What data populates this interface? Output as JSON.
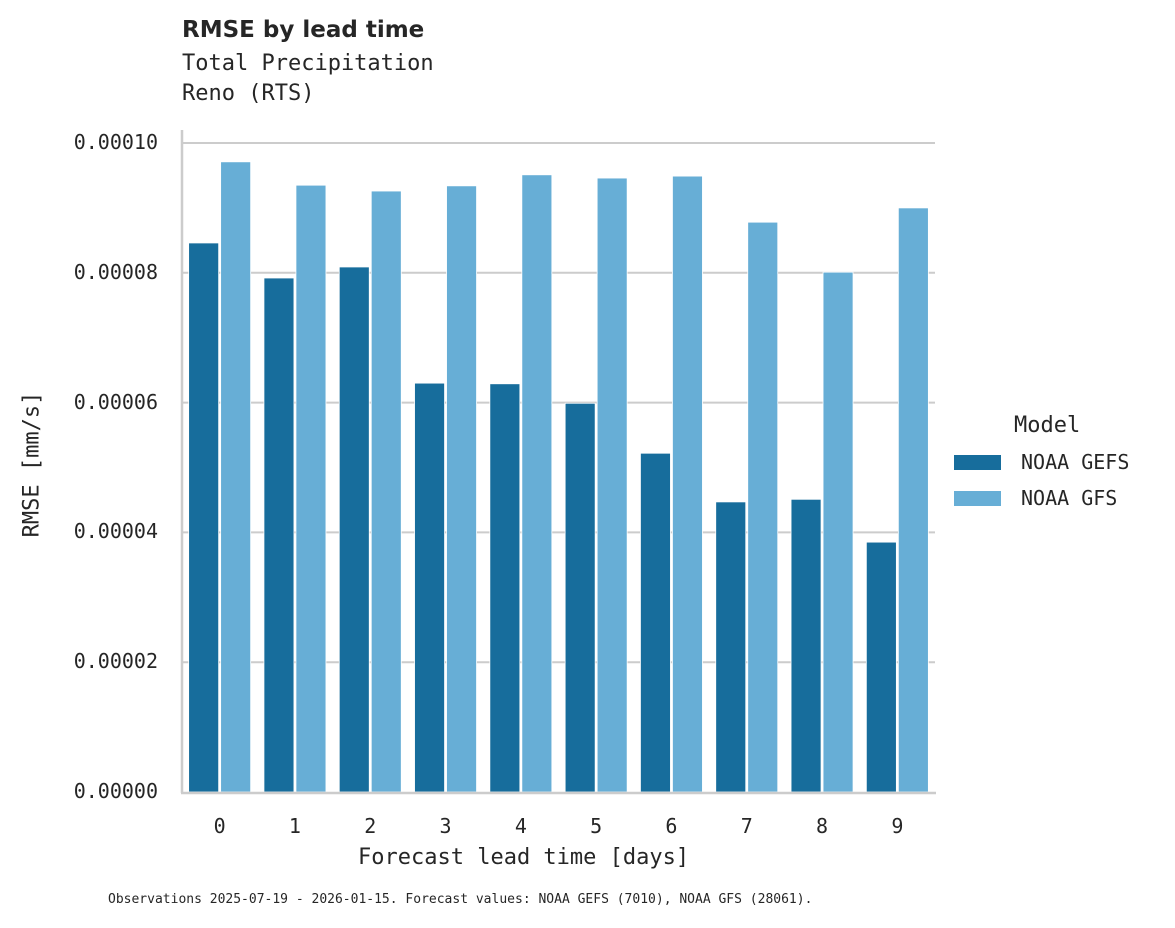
{
  "header": {
    "title": "RMSE by lead time",
    "subtitle_line1": "Total Precipitation",
    "subtitle_line2": "Reno (RTS)"
  },
  "axes": {
    "xlabel": "Forecast lead time [days]",
    "ylabel": "RMSE [mm/s]",
    "yticks": [
      "0.00000",
      "0.00002",
      "0.00004",
      "0.00006",
      "0.00008",
      "0.00010"
    ],
    "xticks": [
      "0",
      "1",
      "2",
      "3",
      "4",
      "5",
      "6",
      "7",
      "8",
      "9"
    ]
  },
  "legend": {
    "title": "Model",
    "items": [
      {
        "label": "NOAA GEFS",
        "color": "#176d9c"
      },
      {
        "label": "NOAA GFS",
        "color": "#67aed6"
      }
    ]
  },
  "footnote": "Observations 2025-07-19 - 2026-01-15. Forecast values: NOAA GEFS (7010), NOAA GFS (28061).",
  "chart_data": {
    "type": "bar",
    "title": "RMSE by lead time",
    "subtitle": "Total Precipitation / Reno (RTS)",
    "xlabel": "Forecast lead time [days]",
    "ylabel": "RMSE [mm/s]",
    "categories": [
      "0",
      "1",
      "2",
      "3",
      "4",
      "5",
      "6",
      "7",
      "8",
      "9"
    ],
    "series": [
      {
        "name": "NOAA GEFS",
        "color": "#176d9c",
        "values": [
          8.46e-05,
          7.92e-05,
          8.09e-05,
          6.3e-05,
          6.29e-05,
          5.99e-05,
          5.22e-05,
          4.47e-05,
          4.51e-05,
          3.85e-05
        ]
      },
      {
        "name": "NOAA GFS",
        "color": "#67aed6",
        "values": [
          9.71e-05,
          9.35e-05,
          9.26e-05,
          9.34e-05,
          9.51e-05,
          9.46e-05,
          9.49e-05,
          8.78e-05,
          8.01e-05,
          9e-05
        ]
      }
    ],
    "ylim": [
      0,
      0.0001
    ],
    "grid": "horizontal",
    "legend_position": "right"
  }
}
